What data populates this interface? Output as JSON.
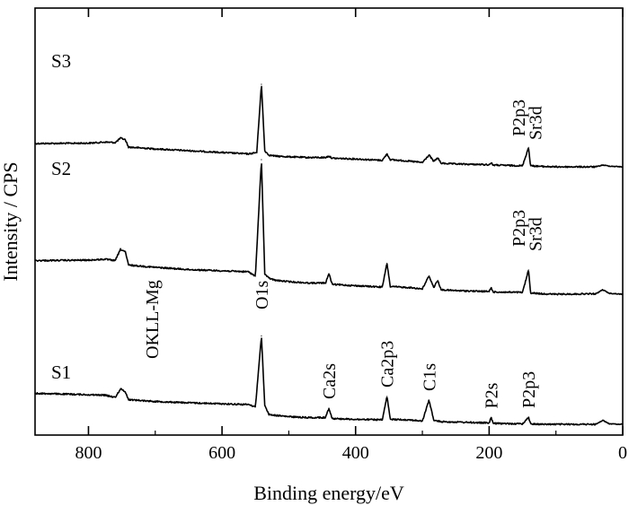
{
  "chart_data": {
    "type": "line",
    "xlabel": "Binding energy/eV",
    "ylabel": "Intensity / CPS",
    "xlim": [
      880,
      0
    ],
    "x_reversed": true,
    "xticks": [
      800,
      600,
      400,
      200,
      0
    ],
    "xtick_labels": [
      "800",
      "600",
      "400",
      "200",
      "0"
    ],
    "y_ticks_shown": false,
    "grid": false,
    "legend": "none",
    "line_color": "#000000",
    "series": [
      {
        "name": "S3",
        "points": [
          [
            880,
            1.3
          ],
          [
            800,
            1.32
          ],
          [
            775,
            1.38
          ],
          [
            760,
            1.35
          ],
          [
            752,
            1.6
          ],
          [
            745,
            1.52
          ],
          [
            740,
            1.1
          ],
          [
            700,
            1.0
          ],
          [
            650,
            0.9
          ],
          [
            560,
            0.72
          ],
          [
            548,
            0.8
          ],
          [
            541,
            4.6
          ],
          [
            536,
            0.9
          ],
          [
            530,
            0.66
          ],
          [
            520,
            0.6
          ],
          [
            500,
            0.56
          ],
          [
            470,
            0.52
          ],
          [
            445,
            0.52
          ],
          [
            440,
            0.6
          ],
          [
            435,
            0.48
          ],
          [
            400,
            0.44
          ],
          [
            360,
            0.36
          ],
          [
            353,
            0.72
          ],
          [
            348,
            0.4
          ],
          [
            320,
            0.32
          ],
          [
            300,
            0.24
          ],
          [
            290,
            0.66
          ],
          [
            283,
            0.3
          ],
          [
            277,
            0.5
          ],
          [
            272,
            0.2
          ],
          [
            250,
            0.16
          ],
          [
            200,
            0.12
          ],
          [
            197,
            0.22
          ],
          [
            194,
            0.1
          ],
          [
            150,
            0.06
          ],
          [
            141,
            1.08
          ],
          [
            138,
            0.06
          ],
          [
            120,
            0.02
          ],
          [
            100,
            0.0
          ],
          [
            40,
            0.0
          ],
          [
            30,
            0.1
          ],
          [
            20,
            0.04
          ],
          [
            0,
            0.0
          ]
        ]
      },
      {
        "name": "S2",
        "points": [
          [
            880,
            1.5
          ],
          [
            800,
            1.52
          ],
          [
            775,
            1.56
          ],
          [
            760,
            1.5
          ],
          [
            752,
            2.0
          ],
          [
            745,
            1.9
          ],
          [
            740,
            1.3
          ],
          [
            700,
            1.2
          ],
          [
            650,
            1.1
          ],
          [
            560,
            1.0
          ],
          [
            550,
            0.8
          ],
          [
            541,
            6.0
          ],
          [
            536,
            0.9
          ],
          [
            530,
            0.72
          ],
          [
            520,
            0.62
          ],
          [
            500,
            0.56
          ],
          [
            470,
            0.5
          ],
          [
            445,
            0.5
          ],
          [
            440,
            0.92
          ],
          [
            435,
            0.44
          ],
          [
            400,
            0.38
          ],
          [
            360,
            0.32
          ],
          [
            353,
            1.38
          ],
          [
            348,
            0.34
          ],
          [
            320,
            0.3
          ],
          [
            300,
            0.24
          ],
          [
            290,
            0.82
          ],
          [
            283,
            0.3
          ],
          [
            277,
            0.62
          ],
          [
            272,
            0.2
          ],
          [
            250,
            0.16
          ],
          [
            200,
            0.12
          ],
          [
            197,
            0.3
          ],
          [
            194,
            0.1
          ],
          [
            150,
            0.08
          ],
          [
            141,
            1.08
          ],
          [
            138,
            0.06
          ],
          [
            120,
            0.02
          ],
          [
            100,
            0.0
          ],
          [
            40,
            0.02
          ],
          [
            30,
            0.2
          ],
          [
            20,
            0.04
          ],
          [
            0,
            0.0
          ]
        ]
      },
      {
        "name": "S1",
        "points": [
          [
            880,
            1.38
          ],
          [
            800,
            1.32
          ],
          [
            775,
            1.3
          ],
          [
            760,
            1.2
          ],
          [
            752,
            1.58
          ],
          [
            745,
            1.46
          ],
          [
            740,
            1.1
          ],
          [
            700,
            1.02
          ],
          [
            650,
            0.96
          ],
          [
            560,
            0.88
          ],
          [
            550,
            0.78
          ],
          [
            541,
            3.94
          ],
          [
            536,
            0.86
          ],
          [
            530,
            0.44
          ],
          [
            520,
            0.4
          ],
          [
            500,
            0.34
          ],
          [
            470,
            0.3
          ],
          [
            445,
            0.3
          ],
          [
            440,
            0.72
          ],
          [
            435,
            0.26
          ],
          [
            400,
            0.22
          ],
          [
            360,
            0.2
          ],
          [
            353,
            1.24
          ],
          [
            348,
            0.22
          ],
          [
            320,
            0.2
          ],
          [
            300,
            0.14
          ],
          [
            290,
            1.08
          ],
          [
            283,
            0.18
          ],
          [
            277,
            0.14
          ],
          [
            272,
            0.12
          ],
          [
            250,
            0.1
          ],
          [
            200,
            0.06
          ],
          [
            197,
            0.3
          ],
          [
            194,
            0.04
          ],
          [
            150,
            0.02
          ],
          [
            141,
            0.32
          ],
          [
            138,
            0.02
          ],
          [
            120,
            0.0
          ],
          [
            100,
            0.0
          ],
          [
            40,
            0.0
          ],
          [
            30,
            0.18
          ],
          [
            20,
            0.02
          ],
          [
            0,
            0.0
          ]
        ]
      }
    ],
    "peak_labels": [
      {
        "text": "OKLL-Mg",
        "x": 705,
        "series": "S1"
      },
      {
        "text": "O1s",
        "x": 541,
        "series": "S1"
      },
      {
        "text": "Ca2s",
        "x": 440,
        "series": "S1"
      },
      {
        "text": "Ca2p3",
        "x": 353,
        "series": "S1"
      },
      {
        "text": "C1s",
        "x": 290,
        "series": "S1"
      },
      {
        "text": "P2s",
        "x": 197,
        "series": "S1"
      },
      {
        "text": "P2p3",
        "x": 141,
        "series": "S1"
      },
      {
        "text": "P2p3",
        "x": 156,
        "series": "S2"
      },
      {
        "text": "Sr3d",
        "x": 131,
        "series": "S2"
      },
      {
        "text": "P2p3",
        "x": 156,
        "series": "S3"
      },
      {
        "text": "Sr3d",
        "x": 131,
        "series": "S3"
      }
    ]
  }
}
